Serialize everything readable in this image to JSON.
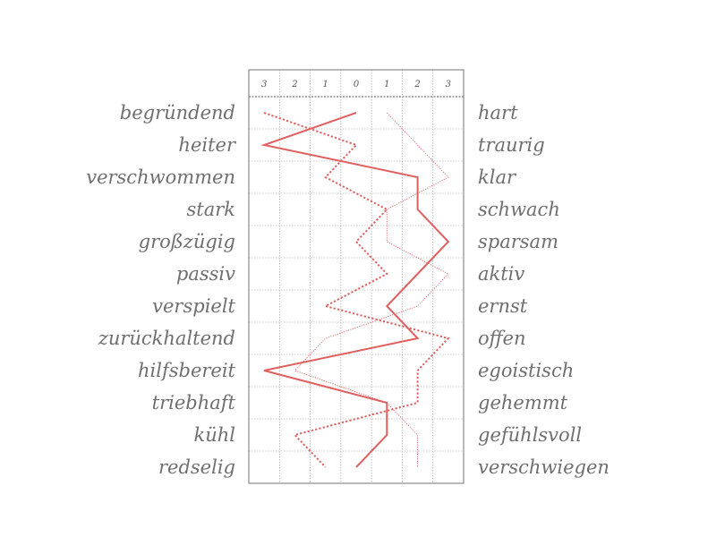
{
  "chart_data": {
    "type": "line",
    "x_ticks": [
      "3",
      "2",
      "1",
      "0",
      "1",
      "2",
      "3"
    ],
    "xlim": [
      -3,
      3
    ],
    "left_labels": [
      "begründend",
      "heiter",
      "verschwommen",
      "stark",
      "großzügig",
      "passiv",
      "verspielt",
      "zurückhaltend",
      "hilfsbereit",
      "triebhaft",
      "kühl",
      "redselig"
    ],
    "right_labels": [
      "hart",
      "traurig",
      "klar",
      "schwach",
      "sparsam",
      "aktiv",
      "ernst",
      "offen",
      "egoistisch",
      "gehemmt",
      "gefühlsvoll",
      "verschwiegen"
    ],
    "grid": true,
    "series": [
      {
        "style": "solid",
        "color": "#e06060",
        "values": [
          0,
          -3,
          2,
          2,
          3,
          2,
          1,
          2,
          -3,
          1,
          1,
          0
        ]
      },
      {
        "style": "dotted-bold",
        "color": "#e06060",
        "values": [
          -3,
          0,
          -1,
          1,
          0,
          1,
          -1,
          3,
          2,
          2,
          -2,
          -1
        ]
      },
      {
        "style": "dotted-thin",
        "color": "#e06060",
        "values": [
          1,
          2,
          3,
          1,
          1,
          3,
          2,
          -1,
          -2,
          1,
          2,
          2
        ]
      }
    ]
  }
}
